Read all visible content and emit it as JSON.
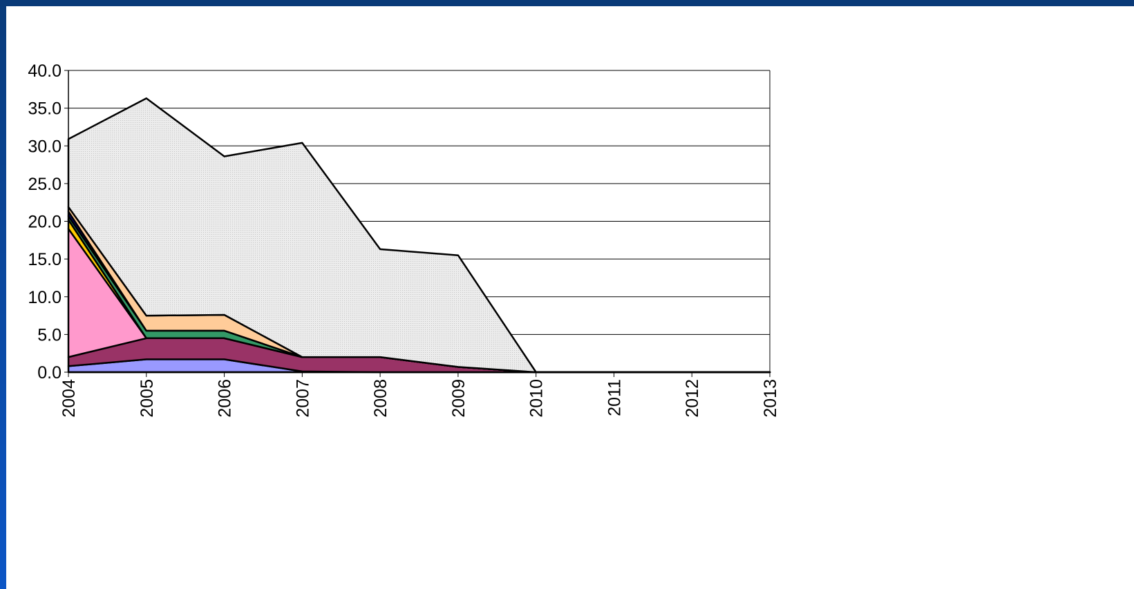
{
  "colors": {
    "frame_blue": "#0a3b7a",
    "panel_bg": "#ffffff",
    "gridline": "#000000"
  },
  "chart_data": {
    "type": "area",
    "stacked": true,
    "title": "",
    "xlabel": "",
    "ylabel": "",
    "x": [
      "2004",
      "2005",
      "2006",
      "2007",
      "2008",
      "2009",
      "2010",
      "2011",
      "2012",
      "2013"
    ],
    "ylim": [
      0,
      40
    ],
    "yticks": [
      "0.0",
      "5.0",
      "10.0",
      "15.0",
      "20.0",
      "25.0",
      "30.0",
      "35.0",
      "40.0"
    ],
    "grid": true,
    "legend": "none",
    "series": [
      {
        "color": "#9999ff",
        "values": [
          0.8,
          1.7,
          1.7,
          0.1,
          0,
          0,
          0,
          0,
          0,
          0
        ]
      },
      {
        "color": "#993366",
        "values": [
          1.2,
          2.8,
          2.8,
          1.9,
          2.0,
          0.7,
          0,
          0,
          0,
          0
        ]
      },
      {
        "color": "#ff99cc",
        "values": [
          17.0,
          0,
          0,
          0,
          0,
          0,
          0,
          0,
          0,
          0
        ]
      },
      {
        "color": "#ffcc00",
        "values": [
          1.2,
          0,
          0,
          0,
          0,
          0,
          0,
          0,
          0,
          0
        ]
      },
      {
        "color": "#339966",
        "values": [
          0.5,
          1.0,
          1.0,
          0,
          0,
          0,
          0,
          0,
          0,
          0
        ]
      },
      {
        "color": "#000080",
        "values": [
          0.6,
          0,
          0,
          0,
          0,
          0,
          0,
          0,
          0,
          0
        ]
      },
      {
        "color": "#ffcc99",
        "values": [
          0.6,
          2.0,
          2.1,
          0,
          0,
          0,
          0,
          0,
          0,
          0
        ]
      },
      {
        "color": "#e6e6e6",
        "values": [
          9.0,
          28.8,
          21.0,
          28.4,
          14.3,
          14.8,
          0,
          0,
          0,
          0
        ]
      }
    ]
  }
}
